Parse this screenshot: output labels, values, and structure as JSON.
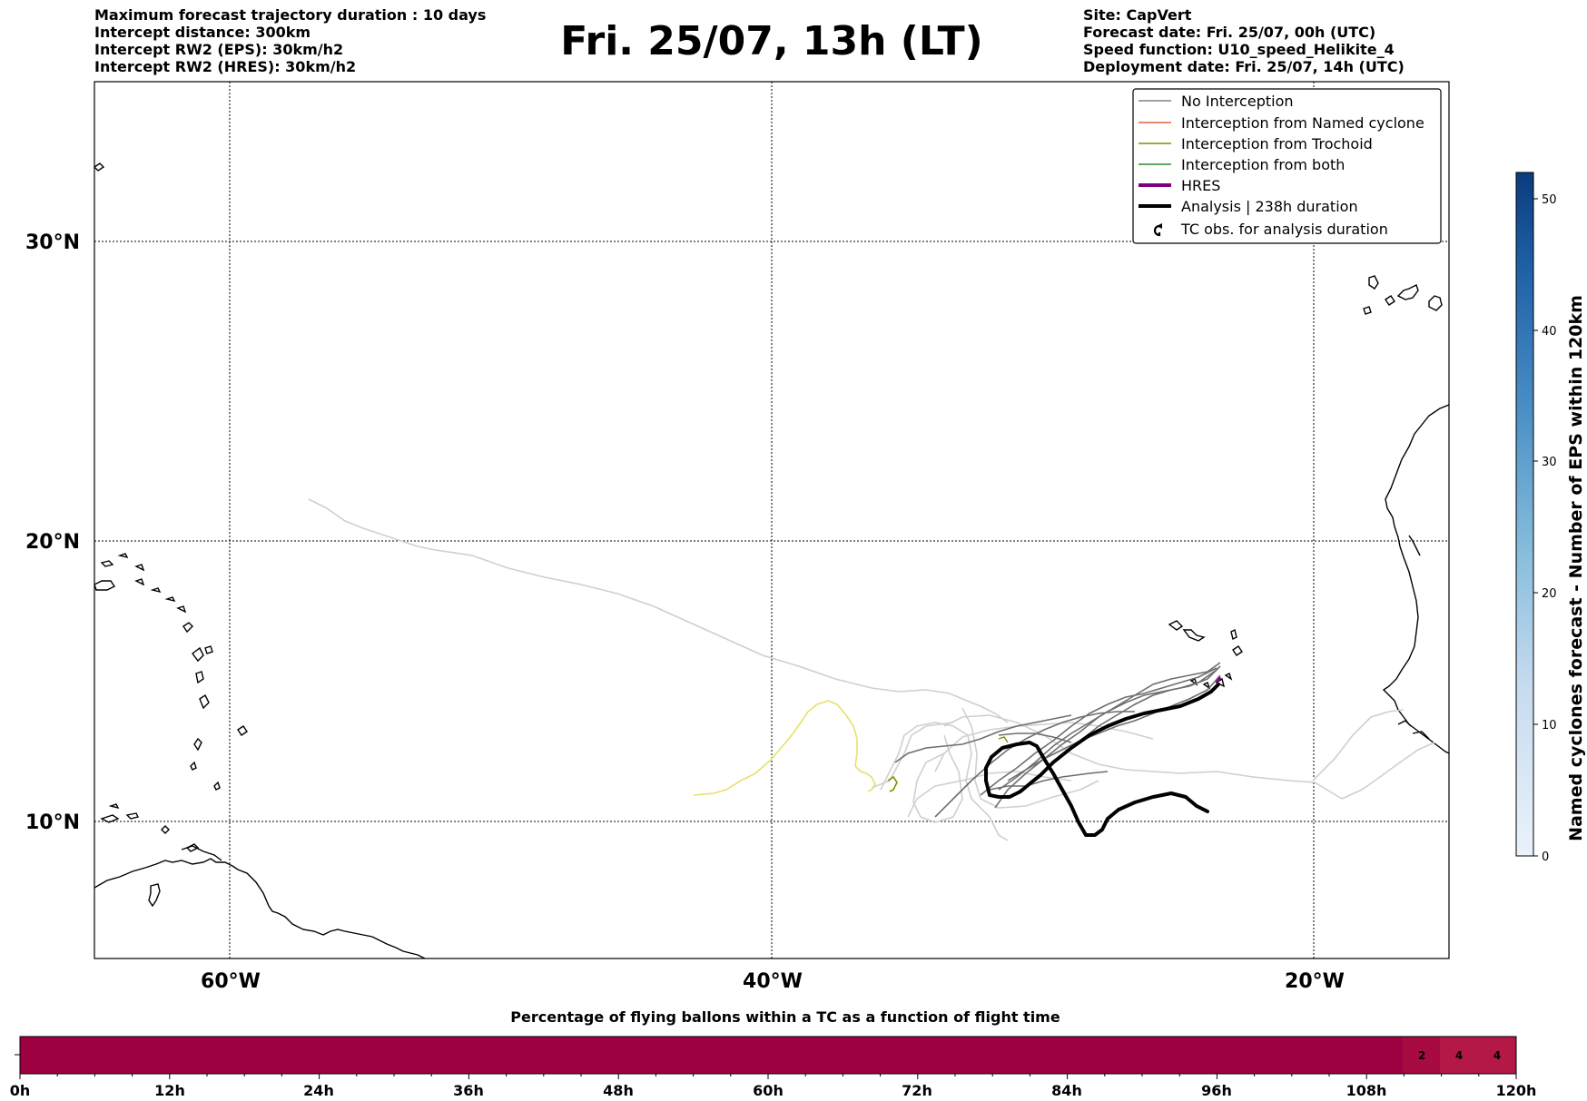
{
  "header": {
    "left": [
      "Maximum forecast trajectory duration : 10 days",
      "Intercept distance: 300km",
      "Intercept RW2 (EPS):  30km/h2",
      "Intercept RW2 (HRES): 30km/h2"
    ],
    "title": "Fri. 25/07, 13h (LT)",
    "right": [
      "Site: CapVert",
      "Forecast date: Fri. 25/07, 00h (UTC)",
      "Speed function: U10_speed_Helikite_4",
      "Deployment date: Fri. 25/07, 14h (UTC)"
    ]
  },
  "map": {
    "lat_labels": [
      "30°N",
      "20°N",
      "10°N"
    ],
    "lon_labels": [
      "60°W",
      "40°W",
      "20°W"
    ]
  },
  "legend": {
    "items": [
      {
        "label": "No Interception",
        "color": "#808080",
        "style": "thin"
      },
      {
        "label": "Interception from Named cyclone",
        "color": "#e8603c",
        "style": "thin"
      },
      {
        "label": "Interception from Trochoid",
        "color": "#8a8a00",
        "style": "thin"
      },
      {
        "label": "Interception from both",
        "color": "#2e8b2e",
        "style": "thin"
      },
      {
        "label": "HRES",
        "color": "#800080",
        "style": "thick"
      },
      {
        "label": "Analysis | 238h duration",
        "color": "#000000",
        "style": "thick"
      },
      {
        "label": "TC obs. for analysis duration",
        "color": "#000000",
        "style": "symbol"
      }
    ]
  },
  "colorbar": {
    "label": "Named cyclones forecast - Number of EPS within 120km",
    "ticks": [
      "0",
      "10",
      "20",
      "30",
      "40",
      "50"
    ],
    "max": 52,
    "colors": [
      "#eaf2fb",
      "#0a3c7d"
    ]
  },
  "timebar": {
    "title": "Percentage of flying ballons within a TC as a function of flight time",
    "ticks": [
      "0h",
      "12h",
      "24h",
      "36h",
      "48h",
      "60h",
      "72h",
      "84h",
      "96h",
      "108h",
      "120h"
    ],
    "base_color": "#9e0142",
    "cells": [
      {
        "label": "2",
        "color": "#a80a42"
      },
      {
        "label": "4",
        "color": "#b41846"
      },
      {
        "label": "4",
        "color": "#b41846"
      }
    ]
  }
}
